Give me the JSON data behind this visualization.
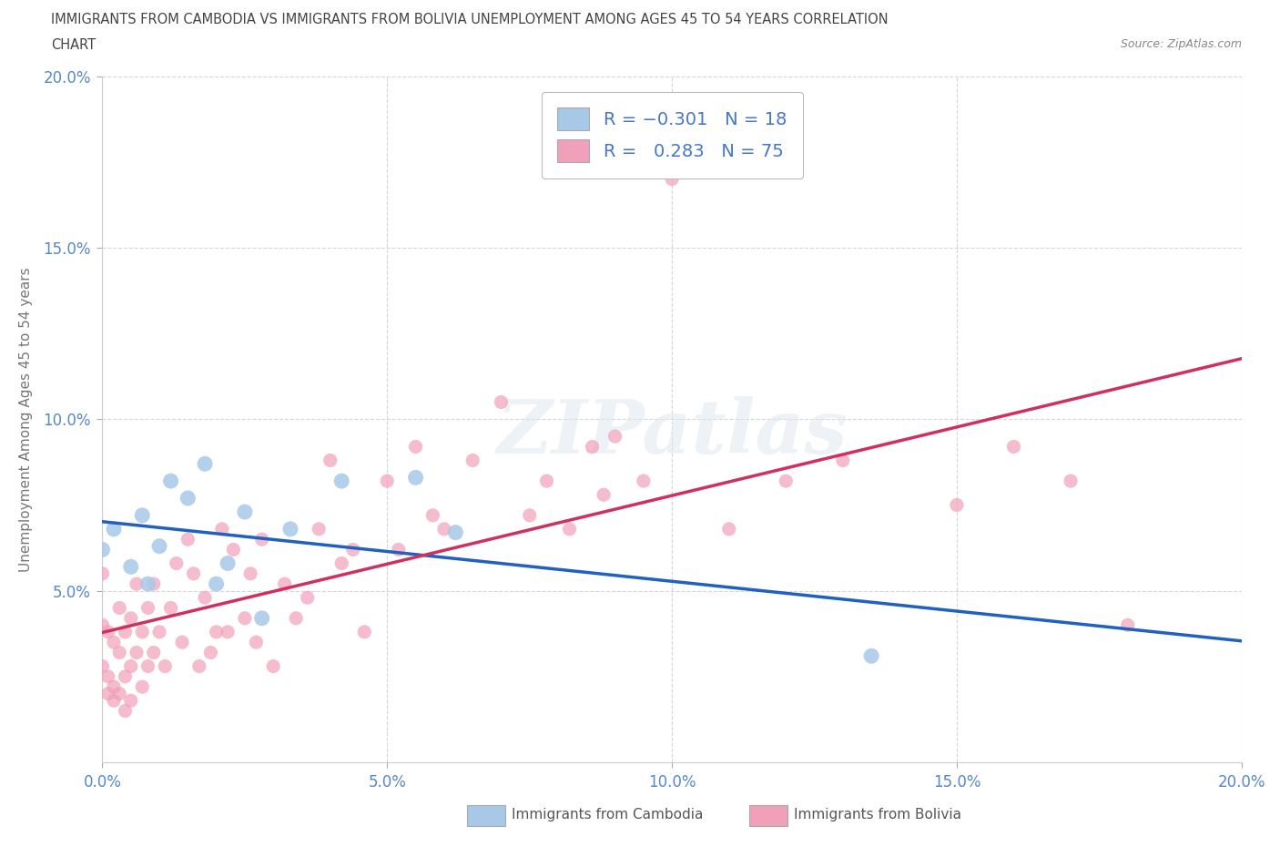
{
  "title_line1": "IMMIGRANTS FROM CAMBODIA VS IMMIGRANTS FROM BOLIVIA UNEMPLOYMENT AMONG AGES 45 TO 54 YEARS CORRELATION",
  "title_line2": "CHART",
  "source_text": "Source: ZipAtlas.com",
  "ylabel": "Unemployment Among Ages 45 to 54 years",
  "xlim": [
    0.0,
    0.2
  ],
  "ylim": [
    0.0,
    0.2
  ],
  "xticks": [
    0.0,
    0.05,
    0.1,
    0.15,
    0.2
  ],
  "yticks": [
    0.05,
    0.1,
    0.15,
    0.2
  ],
  "ytick_labels": [
    "5.0%",
    "10.0%",
    "15.0%",
    "20.0%"
  ],
  "xtick_labels": [
    "0.0%",
    "5.0%",
    "10.0%",
    "15.0%",
    "20.0%"
  ],
  "watermark": "ZIPatlas",
  "color_cambodia": "#a8c8e8",
  "color_bolivia": "#f0a0b8",
  "line_color_cambodia": "#2060c0",
  "line_color_bolivia": "#d03060",
  "trend_dashed_color": "#c0a0b0",
  "grid_color": "#cccccc",
  "title_color": "#444444",
  "tick_color": "#5588cc",
  "legend_rn_color": "#4477cc",
  "legend_box_edge": "#aaaaaa",
  "bottom_legend_text_color": "#555555",
  "cam_x": [
    0.0,
    0.002,
    0.005,
    0.007,
    0.008,
    0.01,
    0.012,
    0.015,
    0.018,
    0.02,
    0.022,
    0.025,
    0.028,
    0.033,
    0.042,
    0.055,
    0.062,
    0.135
  ],
  "cam_y": [
    0.062,
    0.068,
    0.057,
    0.072,
    0.052,
    0.063,
    0.082,
    0.077,
    0.087,
    0.052,
    0.058,
    0.073,
    0.042,
    0.068,
    0.082,
    0.083,
    0.067,
    0.031
  ],
  "bol_x": [
    0.0,
    0.0,
    0.0,
    0.001,
    0.001,
    0.001,
    0.002,
    0.002,
    0.002,
    0.003,
    0.003,
    0.003,
    0.004,
    0.004,
    0.004,
    0.005,
    0.005,
    0.005,
    0.006,
    0.006,
    0.007,
    0.007,
    0.008,
    0.008,
    0.009,
    0.009,
    0.01,
    0.011,
    0.012,
    0.013,
    0.014,
    0.015,
    0.016,
    0.017,
    0.018,
    0.019,
    0.02,
    0.021,
    0.022,
    0.023,
    0.025,
    0.026,
    0.027,
    0.028,
    0.03,
    0.032,
    0.034,
    0.036,
    0.038,
    0.04,
    0.042,
    0.044,
    0.046,
    0.05,
    0.052,
    0.055,
    0.058,
    0.06,
    0.065,
    0.07,
    0.075,
    0.078,
    0.082,
    0.086,
    0.088,
    0.09,
    0.095,
    0.1,
    0.11,
    0.12,
    0.13,
    0.15,
    0.16,
    0.17,
    0.18
  ],
  "bol_y": [
    0.055,
    0.04,
    0.028,
    0.038,
    0.025,
    0.02,
    0.035,
    0.022,
    0.018,
    0.045,
    0.032,
    0.02,
    0.038,
    0.025,
    0.015,
    0.042,
    0.028,
    0.018,
    0.052,
    0.032,
    0.038,
    0.022,
    0.045,
    0.028,
    0.052,
    0.032,
    0.038,
    0.028,
    0.045,
    0.058,
    0.035,
    0.065,
    0.055,
    0.028,
    0.048,
    0.032,
    0.038,
    0.068,
    0.038,
    0.062,
    0.042,
    0.055,
    0.035,
    0.065,
    0.028,
    0.052,
    0.042,
    0.048,
    0.068,
    0.088,
    0.058,
    0.062,
    0.038,
    0.082,
    0.062,
    0.092,
    0.072,
    0.068,
    0.088,
    0.105,
    0.072,
    0.082,
    0.068,
    0.092,
    0.078,
    0.095,
    0.082,
    0.17,
    0.068,
    0.082,
    0.088,
    0.075,
    0.092,
    0.082,
    0.04
  ]
}
